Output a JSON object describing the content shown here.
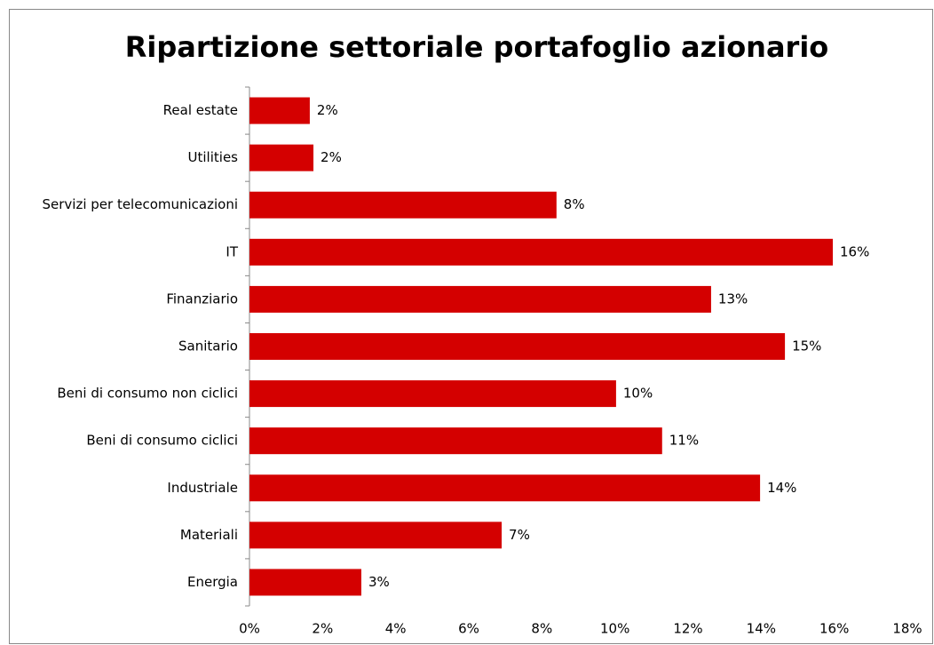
{
  "chart_data": {
    "type": "barh",
    "title": "Ripartizione settoriale portafoglio azionario",
    "categories": [
      "Real estate",
      "Utilities",
      "Servizi per telecomunicazioni",
      "IT",
      "Finanziario",
      "Sanitario",
      "Beni di consumo non ciclici",
      "Beni di consumo ciclici",
      "Industriale",
      "Materiali",
      "Energia"
    ],
    "values": [
      1.65,
      1.75,
      8.4,
      15.96,
      12.63,
      14.65,
      10.03,
      11.29,
      13.97,
      6.9,
      3.06
    ],
    "value_labels": [
      "2%",
      "2%",
      "8%",
      "16%",
      "13%",
      "15%",
      "10%",
      "11%",
      "14%",
      "7%",
      "3%"
    ],
    "color": "#d40000",
    "xlim": [
      0,
      18
    ],
    "xticks": [
      {
        "value": 0,
        "label": "0%"
      },
      {
        "value": 2,
        "label": "2%"
      },
      {
        "value": 4,
        "label": "4%"
      },
      {
        "value": 6,
        "label": "6%"
      },
      {
        "value": 8,
        "label": "8%"
      },
      {
        "value": 10,
        "label": "10%"
      },
      {
        "value": 12,
        "label": "12%"
      },
      {
        "value": 14,
        "label": "14%"
      },
      {
        "value": 16,
        "label": "16%"
      },
      {
        "value": 18,
        "label": "18%"
      }
    ],
    "grid": false
  }
}
